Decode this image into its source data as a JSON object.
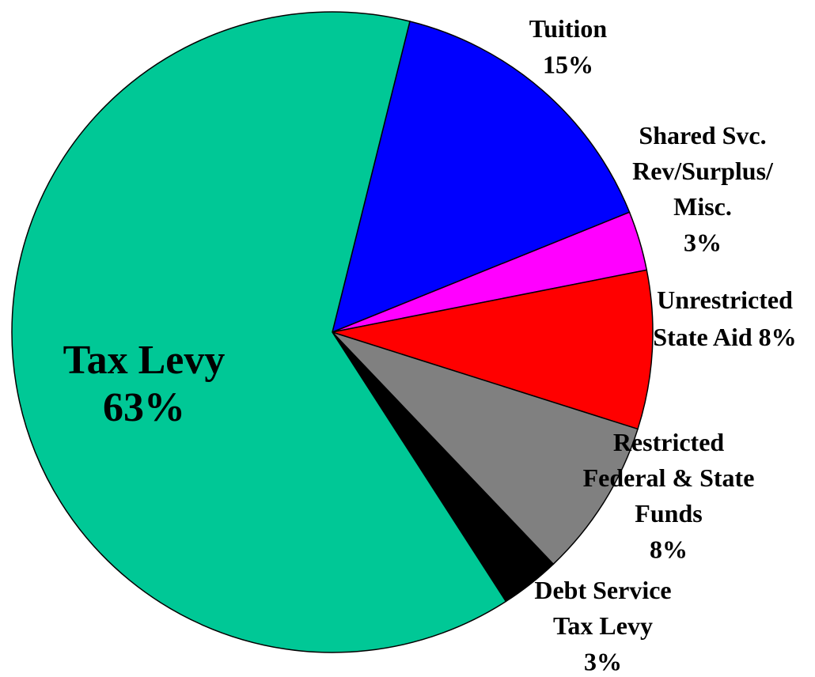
{
  "chart_data": {
    "type": "pie",
    "categories": [
      [
        "Tuition"
      ],
      [
        "Shared Svc.",
        "Rev/Surplus/",
        "Misc."
      ],
      [
        "Unrestricted",
        "State Aid"
      ],
      [
        "Restricted",
        "Federal & State",
        "Funds"
      ],
      [
        "Debt Service",
        "Tax Levy"
      ],
      [
        "Tax Levy"
      ]
    ],
    "values": [
      15,
      3,
      8,
      8,
      3,
      63
    ],
    "value_labels": [
      "15%",
      "3%",
      "8%",
      "8%",
      "3%",
      "63%"
    ],
    "colors": [
      "#0000ff",
      "#ff00ff",
      "#ff0000",
      "#808080",
      "#000000",
      "#00c896"
    ]
  }
}
